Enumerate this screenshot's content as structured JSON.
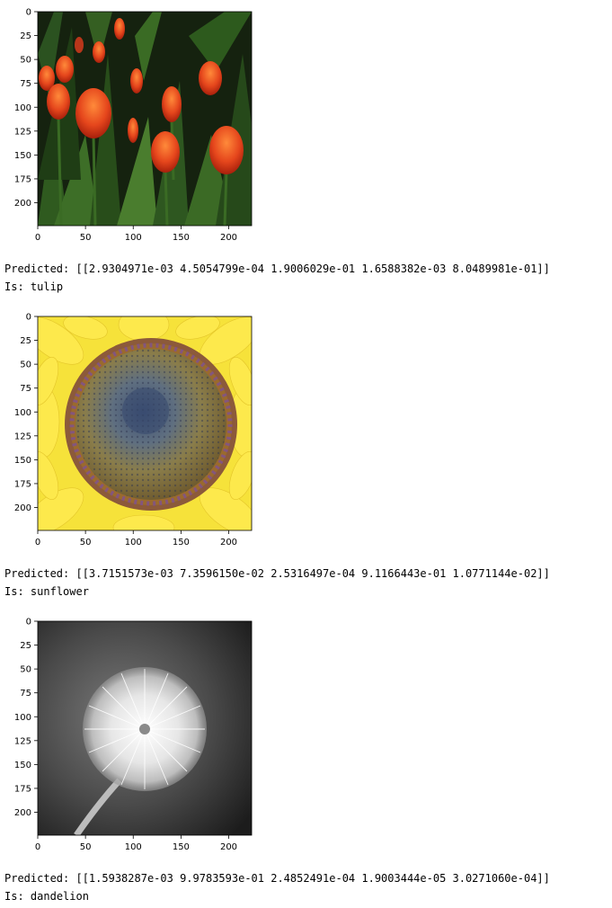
{
  "outputs": [
    {
      "image_subject": "red tulips among green leaves",
      "y_ticks": [
        "0",
        "25",
        "50",
        "75",
        "100",
        "125",
        "150",
        "175",
        "200"
      ],
      "x_ticks": [
        "0",
        "50",
        "100",
        "150",
        "200"
      ],
      "predicted_label": "Predicted:",
      "predicted_value": "[[2.9304971e-03 4.5054799e-04 1.9006029e-01 1.6588382e-03 8.0489981e-01]]",
      "is_label": "Is:",
      "is_value": "tulip"
    },
    {
      "image_subject": "close-up of a yellow sunflower head",
      "y_ticks": [
        "0",
        "25",
        "50",
        "75",
        "100",
        "125",
        "150",
        "175",
        "200"
      ],
      "x_ticks": [
        "0",
        "50",
        "100",
        "150",
        "200"
      ],
      "predicted_label": "Predicted:",
      "predicted_value": "[[3.7151573e-03 7.3596150e-02 2.5316497e-04 9.1166443e-01 1.0771144e-02]]",
      "is_label": "Is:",
      "is_value": "sunflower"
    },
    {
      "image_subject": "grayscale dandelion seed head",
      "y_ticks": [
        "0",
        "25",
        "50",
        "75",
        "100",
        "125",
        "150",
        "175",
        "200"
      ],
      "x_ticks": [
        "0",
        "50",
        "100",
        "150",
        "200"
      ],
      "predicted_label": "Predicted:",
      "predicted_value": "[[1.5938287e-03 9.9783593e-01 2.4852491e-04 1.9003444e-05 3.0271060e-04]]",
      "is_label": "Is:",
      "is_value": "dandelion"
    }
  ],
  "colors": {
    "background": "#ffffff",
    "text": "#000000",
    "axis": "#000000"
  }
}
